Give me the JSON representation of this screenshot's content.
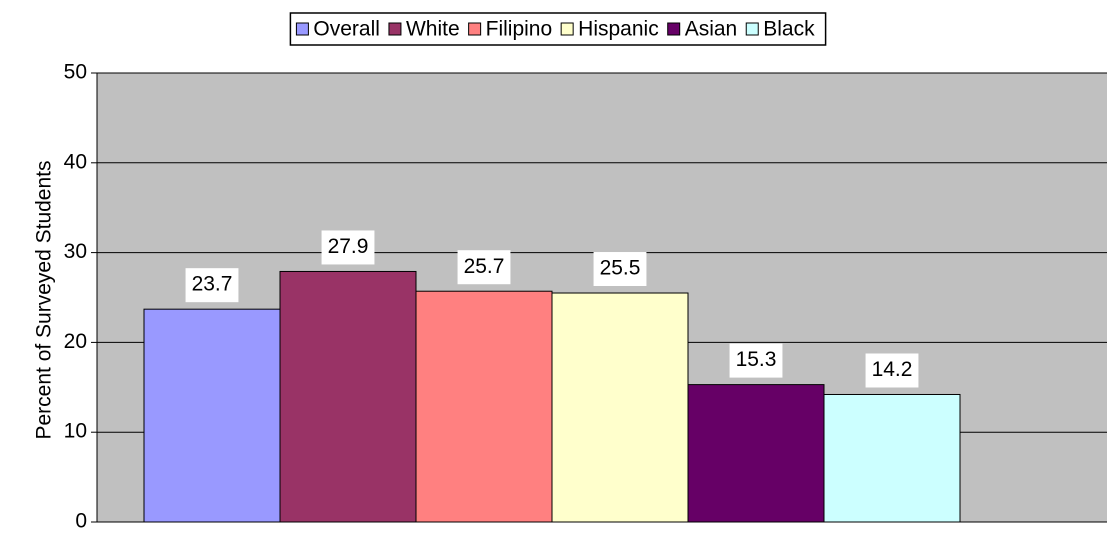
{
  "chart_data": {
    "type": "bar",
    "ylabel": "Percent of Surveyed Students",
    "categories": [
      null
    ],
    "series": [
      {
        "name": "Overall",
        "color": "#9999ff",
        "values": [
          23.7
        ]
      },
      {
        "name": "White",
        "color": "#993366",
        "values": [
          27.9
        ]
      },
      {
        "name": "Filipino",
        "color": "#ff8080",
        "values": [
          25.7
        ]
      },
      {
        "name": "Hispanic",
        "color": "#ffffcc",
        "values": [
          25.5
        ]
      },
      {
        "name": "Asian",
        "color": "#660066",
        "values": [
          15.3
        ]
      },
      {
        "name": "Black",
        "color": "#ccffff",
        "values": [
          14.2
        ]
      }
    ],
    "ylim": [
      0,
      50
    ],
    "yticks": [
      0,
      10,
      20,
      30,
      40,
      50
    ],
    "grid": true,
    "legend": "top",
    "background": "#c0c0c0",
    "data_labels": true
  }
}
